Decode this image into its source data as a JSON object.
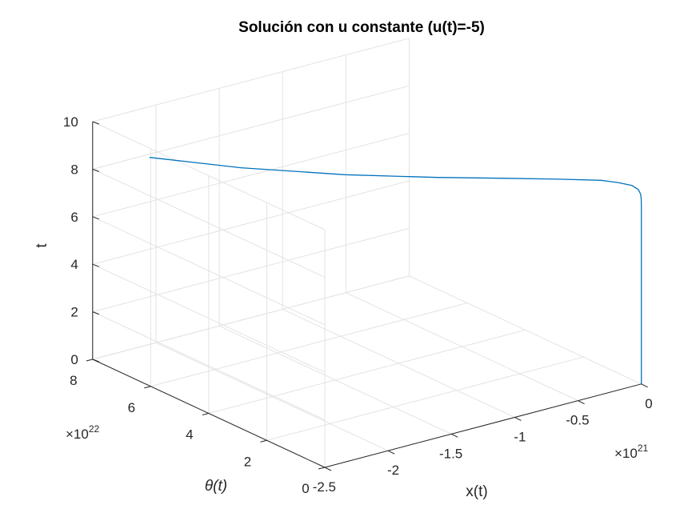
{
  "chart_data": {
    "type": "line",
    "projection": "3d",
    "title": "Solución con u constante (u(t)=-5)",
    "xlabel": "x(t)",
    "ylabel": "θ(t)",
    "zlabel": "t",
    "x_axis": {
      "range": [
        -2.5e+21,
        0
      ],
      "exponent_label": "×10",
      "exponent": "21",
      "ticks": [
        {
          "value": -2.5e+21,
          "label": "-2.5"
        },
        {
          "value": -2e+21,
          "label": "-2"
        },
        {
          "value": -1.5e+21,
          "label": "-1.5"
        },
        {
          "value": -1e+21,
          "label": "-1"
        },
        {
          "value": -5e+20,
          "label": "-0.5"
        },
        {
          "value": 0,
          "label": "0"
        }
      ]
    },
    "y_axis": {
      "range": [
        0,
        8e+22
      ],
      "exponent_label": "×10",
      "exponent": "22",
      "ticks": [
        {
          "value": 0,
          "label": "0"
        },
        {
          "value": 2e+22,
          "label": "2"
        },
        {
          "value": 4e+22,
          "label": "4"
        },
        {
          "value": 6e+22,
          "label": "6"
        },
        {
          "value": 8e+22,
          "label": "8"
        }
      ]
    },
    "z_axis": {
      "range": [
        0,
        10
      ],
      "ticks": [
        {
          "value": 0,
          "label": "0"
        },
        {
          "value": 2,
          "label": "2"
        },
        {
          "value": 4,
          "label": "4"
        },
        {
          "value": 6,
          "label": "6"
        },
        {
          "value": 8,
          "label": "8"
        },
        {
          "value": 10,
          "label": "10"
        }
      ]
    },
    "grid": true,
    "series": [
      {
        "color": "#0072BD",
        "points": [
          {
            "x": 0,
            "y": 0,
            "t": 0
          },
          {
            "x": 0,
            "y": 0,
            "t": 4
          },
          {
            "x": 0,
            "y": 0,
            "t": 7.5
          },
          {
            "x": -1e+18,
            "y": 1e+19,
            "t": 7.8
          },
          {
            "x": -5e+18,
            "y": 5e+19,
            "t": 8.0
          },
          {
            "x": -2e+19,
            "y": 2e+20,
            "t": 8.2
          },
          {
            "x": -6e+19,
            "y": 6e+20,
            "t": 8.4
          },
          {
            "x": -1.5e+20,
            "y": 1.5e+21,
            "t": 8.6
          },
          {
            "x": -2.5e+20,
            "y": 3e+21,
            "t": 8.75
          },
          {
            "x": -5e+20,
            "y": 6.5e+21,
            "t": 8.95
          },
          {
            "x": -8e+20,
            "y": 1.1e+22,
            "t": 9.15
          },
          {
            "x": -1.2e+21,
            "y": 1.8e+22,
            "t": 9.35
          },
          {
            "x": -1.7e+21,
            "y": 2.8e+22,
            "t": 9.6
          },
          {
            "x": -2.2e+21,
            "y": 4.2e+22,
            "t": 9.8
          },
          {
            "x": -2.6e+21,
            "y": 5.6e+22,
            "t": 10
          }
        ]
      }
    ]
  }
}
